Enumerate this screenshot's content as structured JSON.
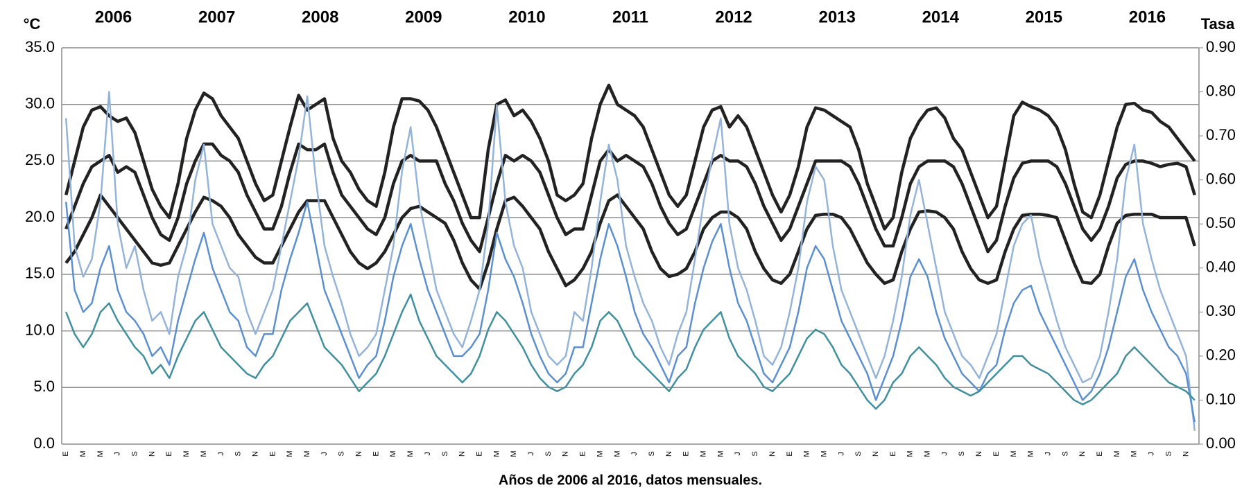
{
  "chart_data": {
    "type": "line",
    "y_label": "°C",
    "y2_label": "Tasa",
    "x_label": "Años de 2006 al 2016, datos mensuales.",
    "year_labels": [
      "2006",
      "2007",
      "2008",
      "2009",
      "2010",
      "2011",
      "2012",
      "2013",
      "2014",
      "2015",
      "2016"
    ],
    "categories": [
      "E",
      null,
      "M",
      null,
      "M",
      null,
      "J",
      null,
      "S",
      null,
      "N",
      null,
      "E",
      null,
      "M",
      null,
      "M",
      null,
      "J",
      null,
      "S",
      null,
      "N",
      null,
      "E",
      null,
      "M",
      null,
      "M",
      null,
      "J",
      null,
      "S",
      null,
      "N",
      null,
      "E",
      null,
      "M",
      null,
      "M",
      null,
      "J",
      null,
      "S",
      null,
      "N",
      null,
      "E",
      null,
      "M",
      null,
      "M",
      null,
      "J",
      null,
      "S",
      null,
      "N",
      null,
      "E",
      null,
      "M",
      null,
      "M",
      null,
      "J",
      null,
      "S",
      null,
      "N",
      null,
      "E",
      null,
      "M",
      null,
      "M",
      null,
      "J",
      null,
      "S",
      null,
      "N",
      null,
      "E",
      null,
      "M",
      null,
      "M",
      null,
      "J",
      null,
      "S",
      null,
      "N",
      null,
      "E",
      null,
      "M",
      null,
      "M",
      null,
      "J",
      null,
      "S",
      null,
      "N",
      null,
      "E",
      null,
      "M",
      null,
      "M",
      null,
      "J",
      null,
      "S",
      null,
      "N",
      null,
      "E",
      null,
      "M",
      null,
      "M",
      null,
      "J",
      null,
      "S",
      null,
      "N",
      null
    ],
    "ylim": [
      0,
      35
    ],
    "yticks": [
      {
        "value": 0,
        "label": "0.0"
      },
      {
        "value": 5,
        "label": "5.0"
      },
      {
        "value": 10,
        "label": "10.0"
      },
      {
        "value": 15,
        "label": "15.0"
      },
      {
        "value": 20,
        "label": "20.0"
      },
      {
        "value": 25,
        "label": "25.0"
      },
      {
        "value": 30,
        "label": "30.0"
      },
      {
        "value": 35,
        "label": "35.0"
      }
    ],
    "y2lim": [
      0,
      0.9
    ],
    "y2ticks": [
      {
        "value": 0,
        "label": "0.00"
      },
      {
        "value": 0.1,
        "label": "0.10"
      },
      {
        "value": 0.2,
        "label": "0.20"
      },
      {
        "value": 0.3,
        "label": "0.30"
      },
      {
        "value": 0.4,
        "label": "0.40"
      },
      {
        "value": 0.5,
        "label": "0.50"
      },
      {
        "value": 0.6,
        "label": "0.60"
      },
      {
        "value": 0.7,
        "label": "0.70"
      },
      {
        "value": 0.8,
        "label": "0.80"
      },
      {
        "value": 0.9,
        "label": "0.90"
      }
    ],
    "grid": true,
    "series": [
      {
        "color": "#222222",
        "values": [
          22,
          25,
          28,
          29.5,
          29.8,
          29,
          28.5,
          28.8,
          27.5,
          25,
          22.5,
          21,
          20,
          23,
          27,
          29.5,
          31,
          30.5,
          29,
          28,
          27,
          25,
          23,
          21.5,
          22,
          25,
          28,
          30.8,
          29.5,
          30,
          30.5,
          27,
          25,
          24,
          22.5,
          21.5,
          21,
          24,
          28,
          30.5,
          30.5,
          30.3,
          29.5,
          28,
          26,
          24,
          22,
          20,
          20,
          26,
          30,
          30.4,
          29,
          29.5,
          28.5,
          27,
          25,
          22,
          21.5,
          22,
          23,
          27,
          30,
          31.7,
          30,
          29.5,
          29,
          28,
          26,
          24,
          22,
          21,
          22,
          25,
          28,
          29.5,
          29.8,
          28,
          29,
          28,
          26,
          24,
          22,
          20.5,
          22,
          24.5,
          28,
          29.7,
          29.5,
          29,
          28.5,
          28,
          26,
          23,
          21,
          19,
          20,
          24,
          27,
          28.5,
          29.5,
          29.7,
          28.8,
          27,
          26,
          24,
          22,
          20,
          21,
          25,
          29,
          30.2,
          29.8,
          29.5,
          29,
          28,
          26,
          23,
          20.5,
          20,
          22,
          25,
          28,
          30,
          30.1,
          29.5,
          29.3,
          28.5,
          28,
          27,
          26,
          25
        ]
      },
      {
        "color": "#222222",
        "values": [
          19,
          21,
          23,
          24.5,
          25,
          25.5,
          24,
          24.5,
          24,
          22,
          20,
          18.5,
          18,
          20,
          23,
          25,
          26.5,
          26.5,
          25.5,
          25,
          24,
          22,
          20.5,
          19,
          19,
          21,
          24,
          26.5,
          26,
          26,
          26.5,
          24,
          22,
          21,
          20,
          19,
          18.5,
          20,
          23,
          25,
          25.5,
          25,
          25,
          25,
          23,
          21.5,
          19.5,
          18,
          17,
          20,
          23,
          25.5,
          25,
          25.5,
          25,
          24,
          22,
          20,
          18.5,
          19,
          19,
          22,
          25,
          26,
          25,
          25.5,
          25,
          24.5,
          23,
          21,
          19.5,
          18.5,
          19,
          21,
          23,
          25,
          25.5,
          25,
          25,
          24.5,
          23,
          21,
          19.5,
          18,
          19,
          21,
          23,
          25,
          25,
          25,
          25,
          24.5,
          23,
          21,
          19,
          17.5,
          17.5,
          20,
          23,
          24.5,
          25,
          25,
          25,
          24.5,
          23,
          21,
          19,
          17,
          18,
          21,
          23.5,
          24.8,
          25,
          25,
          25,
          24.5,
          23,
          21,
          19,
          18,
          19,
          21,
          23.5,
          24.7,
          25,
          25,
          24.8,
          24.5,
          24.7,
          24.8,
          24.5,
          22
        ]
      },
      {
        "color": "#222222",
        "values": [
          16,
          17,
          18.5,
          20,
          22,
          21,
          20,
          19,
          18,
          17,
          16,
          15.8,
          16,
          17.5,
          19,
          20.5,
          21.8,
          21.5,
          21,
          20,
          18.5,
          17.5,
          16.5,
          16,
          16,
          17.5,
          19,
          20.5,
          21.5,
          21.5,
          21.5,
          20,
          18.5,
          17,
          16,
          15.5,
          16,
          17,
          18.5,
          20,
          20.8,
          21,
          20.5,
          20,
          19.5,
          18,
          16,
          14.5,
          13.7,
          16,
          19,
          21.5,
          21.8,
          21,
          20,
          19,
          17,
          15.5,
          14,
          14.5,
          15.5,
          17,
          19.5,
          21.5,
          22,
          21,
          20,
          19,
          17,
          15.5,
          14.8,
          15,
          15.5,
          17,
          19,
          20,
          20.5,
          20.5,
          20,
          19,
          17,
          15.5,
          14.5,
          14.2,
          15,
          17,
          19,
          20.2,
          20.3,
          20.3,
          20,
          19,
          17.5,
          16,
          15,
          14.2,
          14.5,
          17,
          19,
          20.5,
          20.6,
          20.5,
          20,
          19,
          17,
          15.5,
          14.5,
          14.2,
          14.5,
          17,
          19,
          20.2,
          20.3,
          20.3,
          20.2,
          20,
          18,
          16,
          14.3,
          14.2,
          15,
          17.5,
          19.5,
          20.2,
          20.3,
          20.3,
          20.3,
          20,
          20,
          20,
          20,
          17.5
        ]
      },
      {
        "color": "#94b3d9",
        "axis": "y2",
        "values": [
          0.74,
          0.45,
          0.38,
          0.42,
          0.55,
          0.8,
          0.5,
          0.4,
          0.45,
          0.35,
          0.28,
          0.3,
          0.25,
          0.38,
          0.45,
          0.6,
          0.68,
          0.5,
          0.45,
          0.4,
          0.38,
          0.3,
          0.25,
          0.3,
          0.35,
          0.45,
          0.55,
          0.65,
          0.79,
          0.6,
          0.45,
          0.38,
          0.32,
          0.25,
          0.2,
          0.22,
          0.25,
          0.35,
          0.45,
          0.62,
          0.72,
          0.55,
          0.45,
          0.35,
          0.3,
          0.25,
          0.22,
          0.28,
          0.35,
          0.5,
          0.77,
          0.55,
          0.45,
          0.4,
          0.3,
          0.25,
          0.2,
          0.18,
          0.2,
          0.3,
          0.28,
          0.4,
          0.55,
          0.68,
          0.6,
          0.45,
          0.38,
          0.32,
          0.28,
          0.22,
          0.18,
          0.25,
          0.3,
          0.42,
          0.55,
          0.65,
          0.74,
          0.5,
          0.4,
          0.35,
          0.28,
          0.2,
          0.18,
          0.22,
          0.3,
          0.4,
          0.55,
          0.63,
          0.6,
          0.45,
          0.35,
          0.3,
          0.25,
          0.2,
          0.15,
          0.2,
          0.28,
          0.38,
          0.52,
          0.6,
          0.5,
          0.4,
          0.3,
          0.25,
          0.2,
          0.18,
          0.15,
          0.2,
          0.25,
          0.35,
          0.45,
          0.5,
          0.52,
          0.42,
          0.35,
          0.28,
          0.22,
          0.18,
          0.14,
          0.15,
          0.2,
          0.3,
          0.42,
          0.6,
          0.68,
          0.5,
          0.42,
          0.35,
          0.3,
          0.25,
          0.2,
          0.03
        ]
      },
      {
        "color": "#5b8fd0",
        "axis": "y2",
        "values": [
          0.55,
          0.35,
          0.3,
          0.32,
          0.4,
          0.45,
          0.35,
          0.3,
          0.28,
          0.25,
          0.2,
          0.22,
          0.18,
          0.28,
          0.35,
          0.42,
          0.48,
          0.4,
          0.35,
          0.3,
          0.28,
          0.22,
          0.2,
          0.25,
          0.25,
          0.35,
          0.42,
          0.48,
          0.55,
          0.45,
          0.35,
          0.3,
          0.25,
          0.2,
          0.15,
          0.18,
          0.2,
          0.28,
          0.38,
          0.45,
          0.5,
          0.42,
          0.35,
          0.3,
          0.25,
          0.2,
          0.2,
          0.22,
          0.25,
          0.35,
          0.48,
          0.42,
          0.38,
          0.32,
          0.25,
          0.2,
          0.16,
          0.14,
          0.16,
          0.22,
          0.22,
          0.32,
          0.42,
          0.5,
          0.45,
          0.38,
          0.3,
          0.25,
          0.22,
          0.18,
          0.14,
          0.2,
          0.22,
          0.32,
          0.4,
          0.46,
          0.5,
          0.4,
          0.32,
          0.28,
          0.22,
          0.16,
          0.14,
          0.18,
          0.22,
          0.3,
          0.4,
          0.45,
          0.42,
          0.35,
          0.28,
          0.24,
          0.2,
          0.16,
          0.1,
          0.15,
          0.2,
          0.28,
          0.38,
          0.42,
          0.38,
          0.3,
          0.24,
          0.2,
          0.16,
          0.14,
          0.12,
          0.16,
          0.18,
          0.26,
          0.32,
          0.35,
          0.36,
          0.3,
          0.26,
          0.22,
          0.18,
          0.14,
          0.1,
          0.12,
          0.16,
          0.22,
          0.3,
          0.38,
          0.42,
          0.35,
          0.3,
          0.26,
          0.22,
          0.2,
          0.16,
          0.05
        ]
      },
      {
        "color": "#3f8f9f",
        "axis": "y2",
        "values": [
          0.3,
          0.25,
          0.22,
          0.25,
          0.3,
          0.32,
          0.28,
          0.25,
          0.22,
          0.2,
          0.16,
          0.18,
          0.15,
          0.2,
          0.24,
          0.28,
          0.3,
          0.26,
          0.22,
          0.2,
          0.18,
          0.16,
          0.15,
          0.18,
          0.2,
          0.24,
          0.28,
          0.3,
          0.32,
          0.27,
          0.22,
          0.2,
          0.18,
          0.15,
          0.12,
          0.14,
          0.16,
          0.2,
          0.25,
          0.3,
          0.34,
          0.28,
          0.24,
          0.2,
          0.18,
          0.16,
          0.14,
          0.16,
          0.2,
          0.26,
          0.3,
          0.28,
          0.25,
          0.22,
          0.18,
          0.15,
          0.13,
          0.12,
          0.13,
          0.16,
          0.18,
          0.22,
          0.28,
          0.3,
          0.28,
          0.24,
          0.2,
          0.18,
          0.16,
          0.14,
          0.12,
          0.15,
          0.17,
          0.22,
          0.26,
          0.28,
          0.3,
          0.24,
          0.2,
          0.18,
          0.16,
          0.13,
          0.12,
          0.14,
          0.16,
          0.2,
          0.24,
          0.26,
          0.25,
          0.22,
          0.18,
          0.16,
          0.13,
          0.1,
          0.08,
          0.1,
          0.14,
          0.16,
          0.2,
          0.22,
          0.2,
          0.18,
          0.15,
          0.13,
          0.12,
          0.11,
          0.12,
          0.14,
          0.16,
          0.18,
          0.2,
          0.2,
          0.18,
          0.17,
          0.16,
          0.14,
          0.12,
          0.1,
          0.09,
          0.1,
          0.12,
          0.14,
          0.16,
          0.2,
          0.22,
          0.2,
          0.18,
          0.16,
          0.14,
          0.13,
          0.12,
          0.1
        ]
      }
    ]
  }
}
